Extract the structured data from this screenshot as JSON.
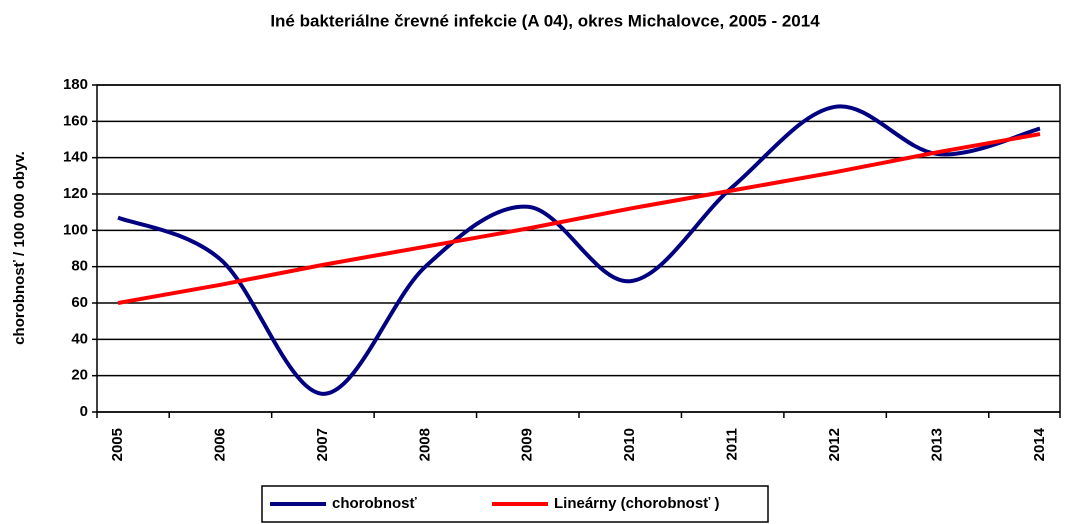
{
  "chart_data": {
    "type": "line",
    "title": "Iné bakteriálne črevné infekcie (A 04), okres Michalovce, 2005 - 2014",
    "y_label": "chorobnosť / 100 000 obyv.",
    "categories": [
      "2005",
      "2006",
      "2007",
      "2008",
      "2009",
      "2010",
      "2011",
      "2012",
      "2013",
      "2014"
    ],
    "series": [
      {
        "name": "chorobnosť",
        "color": "#000080",
        "smooth": true,
        "values": [
          107,
          84,
          10,
          80,
          113,
          72,
          124,
          168,
          142,
          156
        ]
      },
      {
        "name": "Lineárny (chorobnosť )",
        "color": "#ff0000",
        "smooth": false,
        "values": [
          60,
          70,
          81,
          91,
          101,
          112,
          122,
          132,
          143,
          153
        ]
      }
    ],
    "ylim": [
      0,
      180
    ],
    "yticks": [
      0,
      20,
      40,
      60,
      80,
      100,
      120,
      140,
      160,
      180
    ],
    "grid": true,
    "legend": "bottom"
  }
}
